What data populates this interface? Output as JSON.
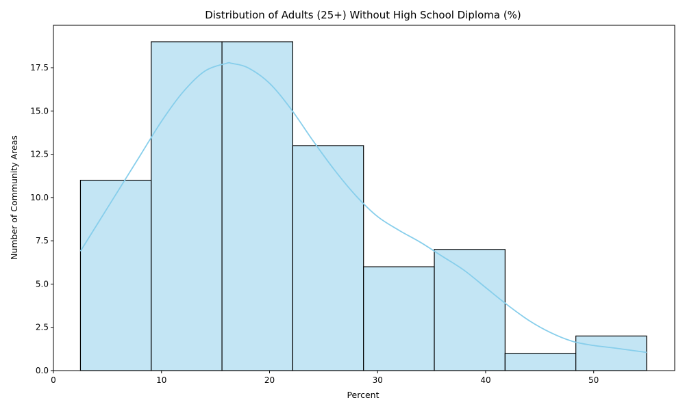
{
  "chart_data": {
    "type": "bar",
    "subtype": "histogram",
    "title": "Distribution of Adults (25+) Without High School Diploma (%)",
    "xlabel": "Percent",
    "ylabel": "Number of Community Areas",
    "xlim": [
      0,
      57.5
    ],
    "ylim": [
      0,
      19.95
    ],
    "x_ticks": [
      0,
      10,
      20,
      30,
      40,
      50
    ],
    "x_tick_labels": [
      "0",
      "10",
      "20",
      "30",
      "40",
      "50"
    ],
    "y_ticks": [
      0,
      2.5,
      5,
      7.5,
      10,
      12.5,
      15,
      17.5
    ],
    "y_tick_labels": [
      "0.0",
      "2.5",
      "5.0",
      "7.5",
      "10.0",
      "12.5",
      "15.0",
      "17.5"
    ],
    "bin_edges": [
      2.5,
      9.05,
      15.6,
      22.15,
      28.7,
      35.25,
      41.8,
      48.35,
      54.9
    ],
    "counts": [
      11,
      19,
      19,
      13,
      6,
      7,
      1,
      2
    ],
    "kde": {
      "x": [
        2.5,
        4,
        6,
        8,
        10,
        12,
        14,
        16,
        16.5,
        18,
        20,
        22,
        24,
        26,
        28,
        30,
        32,
        34,
        36,
        38,
        40,
        42,
        44,
        46,
        48,
        50,
        52,
        54.9
      ],
      "y": [
        6.9,
        8.4,
        10.4,
        12.4,
        14.4,
        16.1,
        17.3,
        17.75,
        17.75,
        17.5,
        16.6,
        15.1,
        13.3,
        11.6,
        10.1,
        8.9,
        8.1,
        7.4,
        6.6,
        5.8,
        4.8,
        3.8,
        2.9,
        2.2,
        1.7,
        1.45,
        1.3,
        1.05
      ]
    },
    "grid": false,
    "legend": "none",
    "colors": {
      "bar_fill": "#c3e5f4",
      "bar_edge": "#000000",
      "kde_line": "#87ceeb",
      "axes": "#000000",
      "background": "#ffffff"
    }
  }
}
